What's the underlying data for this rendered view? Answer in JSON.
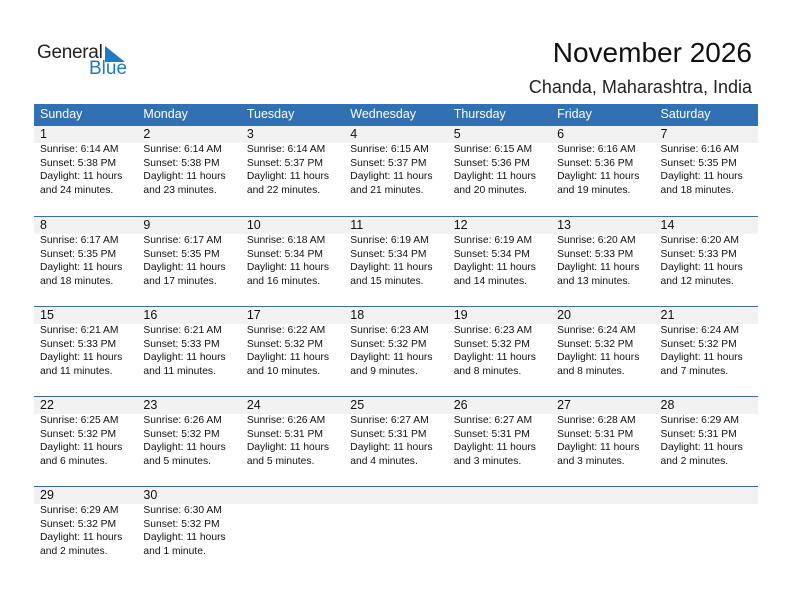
{
  "logo": {
    "general": "General",
    "blue": "Blue",
    "accent": "#1f7ac4"
  },
  "title": "November 2026",
  "location": "Chanda, Maharashtra, India",
  "header_color": "#3070b3",
  "weekdays": [
    "Sunday",
    "Monday",
    "Tuesday",
    "Wednesday",
    "Thursday",
    "Friday",
    "Saturday"
  ],
  "days": [
    {
      "day": "1",
      "sunrise": "Sunrise: 6:14 AM",
      "sunset": "Sunset: 5:38 PM",
      "daylight": "Daylight: 11 hours",
      "minutes": "and 24 minutes."
    },
    {
      "day": "2",
      "sunrise": "Sunrise: 6:14 AM",
      "sunset": "Sunset: 5:38 PM",
      "daylight": "Daylight: 11 hours",
      "minutes": "and 23 minutes."
    },
    {
      "day": "3",
      "sunrise": "Sunrise: 6:14 AM",
      "sunset": "Sunset: 5:37 PM",
      "daylight": "Daylight: 11 hours",
      "minutes": "and 22 minutes."
    },
    {
      "day": "4",
      "sunrise": "Sunrise: 6:15 AM",
      "sunset": "Sunset: 5:37 PM",
      "daylight": "Daylight: 11 hours",
      "minutes": "and 21 minutes."
    },
    {
      "day": "5",
      "sunrise": "Sunrise: 6:15 AM",
      "sunset": "Sunset: 5:36 PM",
      "daylight": "Daylight: 11 hours",
      "minutes": "and 20 minutes."
    },
    {
      "day": "6",
      "sunrise": "Sunrise: 6:16 AM",
      "sunset": "Sunset: 5:36 PM",
      "daylight": "Daylight: 11 hours",
      "minutes": "and 19 minutes."
    },
    {
      "day": "7",
      "sunrise": "Sunrise: 6:16 AM",
      "sunset": "Sunset: 5:35 PM",
      "daylight": "Daylight: 11 hours",
      "minutes": "and 18 minutes."
    },
    {
      "day": "8",
      "sunrise": "Sunrise: 6:17 AM",
      "sunset": "Sunset: 5:35 PM",
      "daylight": "Daylight: 11 hours",
      "minutes": "and 18 minutes."
    },
    {
      "day": "9",
      "sunrise": "Sunrise: 6:17 AM",
      "sunset": "Sunset: 5:35 PM",
      "daylight": "Daylight: 11 hours",
      "minutes": "and 17 minutes."
    },
    {
      "day": "10",
      "sunrise": "Sunrise: 6:18 AM",
      "sunset": "Sunset: 5:34 PM",
      "daylight": "Daylight: 11 hours",
      "minutes": "and 16 minutes."
    },
    {
      "day": "11",
      "sunrise": "Sunrise: 6:19 AM",
      "sunset": "Sunset: 5:34 PM",
      "daylight": "Daylight: 11 hours",
      "minutes": "and 15 minutes."
    },
    {
      "day": "12",
      "sunrise": "Sunrise: 6:19 AM",
      "sunset": "Sunset: 5:34 PM",
      "daylight": "Daylight: 11 hours",
      "minutes": "and 14 minutes."
    },
    {
      "day": "13",
      "sunrise": "Sunrise: 6:20 AM",
      "sunset": "Sunset: 5:33 PM",
      "daylight": "Daylight: 11 hours",
      "minutes": "and 13 minutes."
    },
    {
      "day": "14",
      "sunrise": "Sunrise: 6:20 AM",
      "sunset": "Sunset: 5:33 PM",
      "daylight": "Daylight: 11 hours",
      "minutes": "and 12 minutes."
    },
    {
      "day": "15",
      "sunrise": "Sunrise: 6:21 AM",
      "sunset": "Sunset: 5:33 PM",
      "daylight": "Daylight: 11 hours",
      "minutes": "and 11 minutes."
    },
    {
      "day": "16",
      "sunrise": "Sunrise: 6:21 AM",
      "sunset": "Sunset: 5:33 PM",
      "daylight": "Daylight: 11 hours",
      "minutes": "and 11 minutes."
    },
    {
      "day": "17",
      "sunrise": "Sunrise: 6:22 AM",
      "sunset": "Sunset: 5:32 PM",
      "daylight": "Daylight: 11 hours",
      "minutes": "and 10 minutes."
    },
    {
      "day": "18",
      "sunrise": "Sunrise: 6:23 AM",
      "sunset": "Sunset: 5:32 PM",
      "daylight": "Daylight: 11 hours",
      "minutes": "and 9 minutes."
    },
    {
      "day": "19",
      "sunrise": "Sunrise: 6:23 AM",
      "sunset": "Sunset: 5:32 PM",
      "daylight": "Daylight: 11 hours",
      "minutes": "and 8 minutes."
    },
    {
      "day": "20",
      "sunrise": "Sunrise: 6:24 AM",
      "sunset": "Sunset: 5:32 PM",
      "daylight": "Daylight: 11 hours",
      "minutes": "and 8 minutes."
    },
    {
      "day": "21",
      "sunrise": "Sunrise: 6:24 AM",
      "sunset": "Sunset: 5:32 PM",
      "daylight": "Daylight: 11 hours",
      "minutes": "and 7 minutes."
    },
    {
      "day": "22",
      "sunrise": "Sunrise: 6:25 AM",
      "sunset": "Sunset: 5:32 PM",
      "daylight": "Daylight: 11 hours",
      "minutes": "and 6 minutes."
    },
    {
      "day": "23",
      "sunrise": "Sunrise: 6:26 AM",
      "sunset": "Sunset: 5:32 PM",
      "daylight": "Daylight: 11 hours",
      "minutes": "and 5 minutes."
    },
    {
      "day": "24",
      "sunrise": "Sunrise: 6:26 AM",
      "sunset": "Sunset: 5:31 PM",
      "daylight": "Daylight: 11 hours",
      "minutes": "and 5 minutes."
    },
    {
      "day": "25",
      "sunrise": "Sunrise: 6:27 AM",
      "sunset": "Sunset: 5:31 PM",
      "daylight": "Daylight: 11 hours",
      "minutes": "and 4 minutes."
    },
    {
      "day": "26",
      "sunrise": "Sunrise: 6:27 AM",
      "sunset": "Sunset: 5:31 PM",
      "daylight": "Daylight: 11 hours",
      "minutes": "and 3 minutes."
    },
    {
      "day": "27",
      "sunrise": "Sunrise: 6:28 AM",
      "sunset": "Sunset: 5:31 PM",
      "daylight": "Daylight: 11 hours",
      "minutes": "and 3 minutes."
    },
    {
      "day": "28",
      "sunrise": "Sunrise: 6:29 AM",
      "sunset": "Sunset: 5:31 PM",
      "daylight": "Daylight: 11 hours",
      "minutes": "and 2 minutes."
    },
    {
      "day": "29",
      "sunrise": "Sunrise: 6:29 AM",
      "sunset": "Sunset: 5:32 PM",
      "daylight": "Daylight: 11 hours",
      "minutes": "and 2 minutes."
    },
    {
      "day": "30",
      "sunrise": "Sunrise: 6:30 AM",
      "sunset": "Sunset: 5:32 PM",
      "daylight": "Daylight: 11 hours",
      "minutes": "and 1 minute."
    }
  ]
}
